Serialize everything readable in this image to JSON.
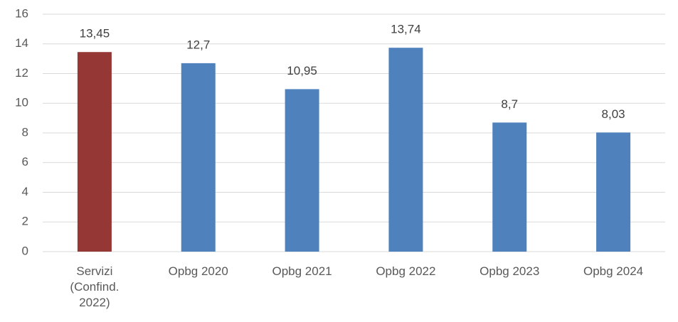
{
  "chart_data": {
    "type": "bar",
    "categories": [
      "Servizi (Confind. 2022)",
      "Opbg 2020",
      "Opbg 2021",
      "Opbg 2022",
      "Opbg 2023",
      "Opbg 2024"
    ],
    "values": [
      13.45,
      12.7,
      10.95,
      13.74,
      8.7,
      8.03
    ],
    "value_labels": [
      "13,45",
      "12,7",
      "10,95",
      "13,74",
      "8,7",
      "8,03"
    ],
    "colors": [
      "#953735",
      "#4f81bd",
      "#4f81bd",
      "#4f81bd",
      "#4f81bd",
      "#4f81bd"
    ],
    "ylim": [
      0,
      16
    ],
    "yticks": [
      0,
      2,
      4,
      6,
      8,
      10,
      12,
      14,
      16
    ],
    "grid": true
  }
}
